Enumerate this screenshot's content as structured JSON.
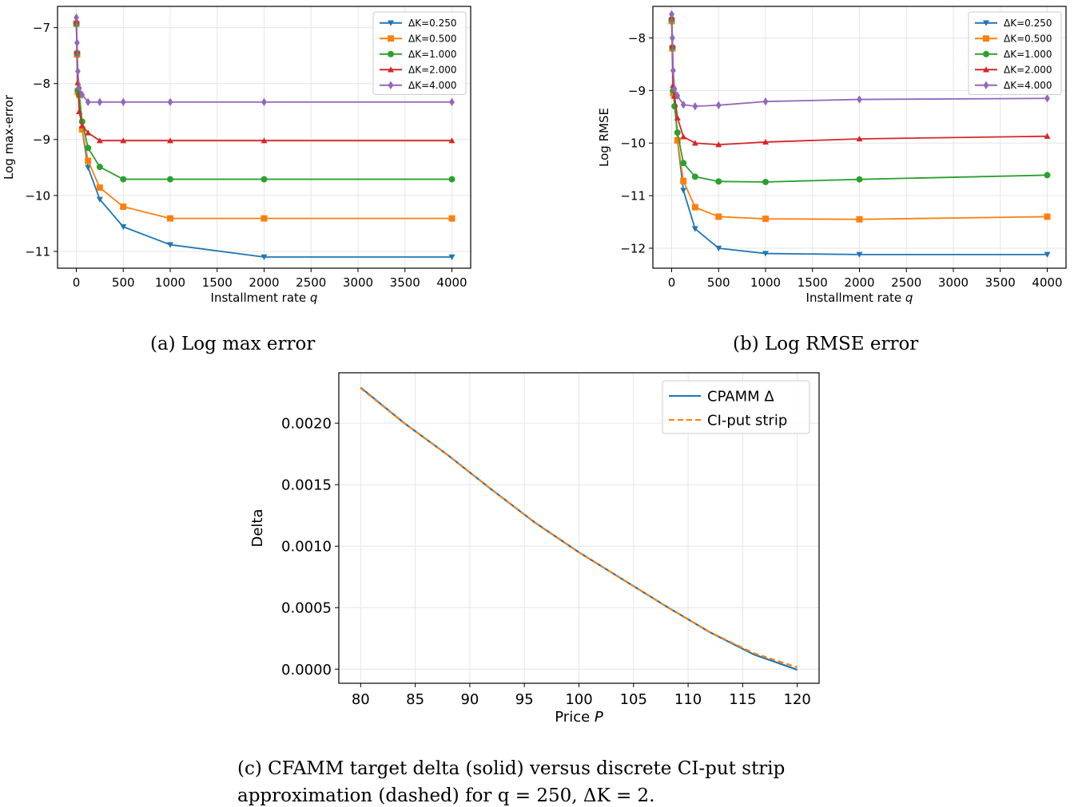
{
  "captions": {
    "a": "(a) Log max error",
    "b": "(b) Log RMSE error",
    "c_line1": "(c) CFAMM target delta (solid) versus discrete CI-put strip",
    "c_line2": "approximation (dashed) for q = 250,  ΔK = 2."
  },
  "chart_data": [
    {
      "id": "a",
      "type": "line",
      "xlabel": "Installment rate q",
      "ylabel": "Log max-error",
      "xlim": [
        -200,
        4200
      ],
      "ylim": [
        -11.3,
        -6.62
      ],
      "xticks": [
        0,
        500,
        1000,
        1500,
        2000,
        2500,
        3000,
        3500,
        4000
      ],
      "yticks": [
        -11,
        -10,
        -9,
        -8,
        -7
      ],
      "grid": true,
      "legend_position": "top-right",
      "x": [
        0.5,
        8,
        16,
        31,
        62,
        125,
        250,
        500,
        1000,
        2000,
        4000
      ],
      "series": [
        {
          "name": "ΔK=0.250",
          "color": "#1f77b4",
          "marker": "triangle-down",
          "values": [
            -6.93,
            -7.46,
            -8.16,
            -8.2,
            -8.82,
            -9.5,
            -10.07,
            -10.56,
            -10.88,
            -11.1,
            -11.1
          ]
        },
        {
          "name": "ΔK=0.500",
          "color": "#ff7f0e",
          "marker": "square",
          "values": [
            -6.93,
            -7.48,
            -8.15,
            -8.2,
            -8.82,
            -9.38,
            -9.86,
            -10.2,
            -10.41,
            -10.41,
            -10.41
          ]
        },
        {
          "name": "ΔK=1.000",
          "color": "#2ca02c",
          "marker": "circle",
          "values": [
            -6.93,
            -7.46,
            -8.12,
            -8.2,
            -8.68,
            -9.15,
            -9.49,
            -9.71,
            -9.71,
            -9.71,
            -9.71
          ]
        },
        {
          "name": "ΔK=2.000",
          "color": "#d62728",
          "marker": "triangle-up",
          "values": [
            -6.88,
            -7.42,
            -7.98,
            -8.5,
            -8.75,
            -8.88,
            -9.02,
            -9.02,
            -9.02,
            -9.02,
            -9.02
          ]
        },
        {
          "name": "ΔK=4.000",
          "color": "#9467bd",
          "marker": "diamond",
          "values": [
            -6.82,
            -7.27,
            -7.78,
            -8.08,
            -8.2,
            -8.33,
            -8.33,
            -8.33,
            -8.33,
            -8.33,
            -8.33
          ]
        }
      ]
    },
    {
      "id": "b",
      "type": "line",
      "xlabel": "Installment rate q",
      "ylabel": "Log RMSE",
      "xlim": [
        -200,
        4200
      ],
      "ylim": [
        -12.38,
        -7.4
      ],
      "xticks": [
        0,
        500,
        1000,
        1500,
        2000,
        2500,
        3000,
        3500,
        4000
      ],
      "yticks": [
        -12,
        -11,
        -10,
        -9,
        -8
      ],
      "grid": true,
      "legend_position": "top-right",
      "x": [
        0.5,
        8,
        16,
        31,
        62,
        125,
        250,
        500,
        1000,
        2000,
        4000
      ],
      "series": [
        {
          "name": "ΔK=0.250",
          "color": "#1f77b4",
          "marker": "triangle-down",
          "values": [
            -7.68,
            -8.2,
            -9.05,
            -9.1,
            -9.95,
            -10.9,
            -11.63,
            -12.0,
            -12.1,
            -12.12,
            -12.12
          ]
        },
        {
          "name": "ΔK=0.500",
          "color": "#ff7f0e",
          "marker": "square",
          "values": [
            -7.68,
            -8.2,
            -9.05,
            -9.1,
            -9.95,
            -10.72,
            -11.22,
            -11.4,
            -11.44,
            -11.45,
            -11.4
          ]
        },
        {
          "name": "ΔK=1.000",
          "color": "#2ca02c",
          "marker": "circle",
          "values": [
            -7.65,
            -8.18,
            -9.0,
            -9.3,
            -9.8,
            -10.38,
            -10.64,
            -10.73,
            -10.74,
            -10.69,
            -10.61
          ]
        },
        {
          "name": "ΔK=2.000",
          "color": "#d62728",
          "marker": "triangle-up",
          "values": [
            -7.6,
            -8.15,
            -8.9,
            -9.1,
            -9.52,
            -9.88,
            -10.0,
            -10.03,
            -9.98,
            -9.92,
            -9.87
          ]
        },
        {
          "name": "ΔK=4.000",
          "color": "#9467bd",
          "marker": "diamond",
          "values": [
            -7.55,
            -8.0,
            -8.62,
            -8.97,
            -9.1,
            -9.27,
            -9.3,
            -9.28,
            -9.21,
            -9.17,
            -9.15
          ]
        }
      ]
    },
    {
      "id": "c",
      "type": "line",
      "xlabel": "Price P",
      "ylabel": "Delta",
      "xlim": [
        78,
        122
      ],
      "ylim": [
        -0.000115,
        0.00241
      ],
      "xticks": [
        80,
        85,
        90,
        95,
        100,
        105,
        110,
        115,
        120
      ],
      "yticks": [
        0.0,
        0.0005,
        0.001,
        0.0015,
        0.002
      ],
      "ytick_labels": [
        "0.0000",
        "0.0005",
        "0.0010",
        "0.0015",
        "0.0020"
      ],
      "grid": true,
      "legend_position": "top-right",
      "x": [
        80,
        84,
        88,
        92,
        96,
        100,
        104,
        108,
        112,
        116,
        120
      ],
      "series": [
        {
          "name": "CPAMM Δ",
          "color": "#1f77b4",
          "style": "solid",
          "values": [
            0.00229,
            0.002,
            0.00174,
            0.00146,
            0.00119,
            0.00095,
            0.00073,
            0.00051,
            0.0003,
            0.00012,
            -5e-06
          ]
        },
        {
          "name": "CI-put strip",
          "color": "#ff7f0e",
          "style": "dashed",
          "values": [
            0.002285,
            0.002,
            0.00174,
            0.00146,
            0.00119,
            0.00095,
            0.00073,
            0.00051,
            0.0003,
            0.00013,
            1.5e-05
          ]
        }
      ]
    }
  ]
}
